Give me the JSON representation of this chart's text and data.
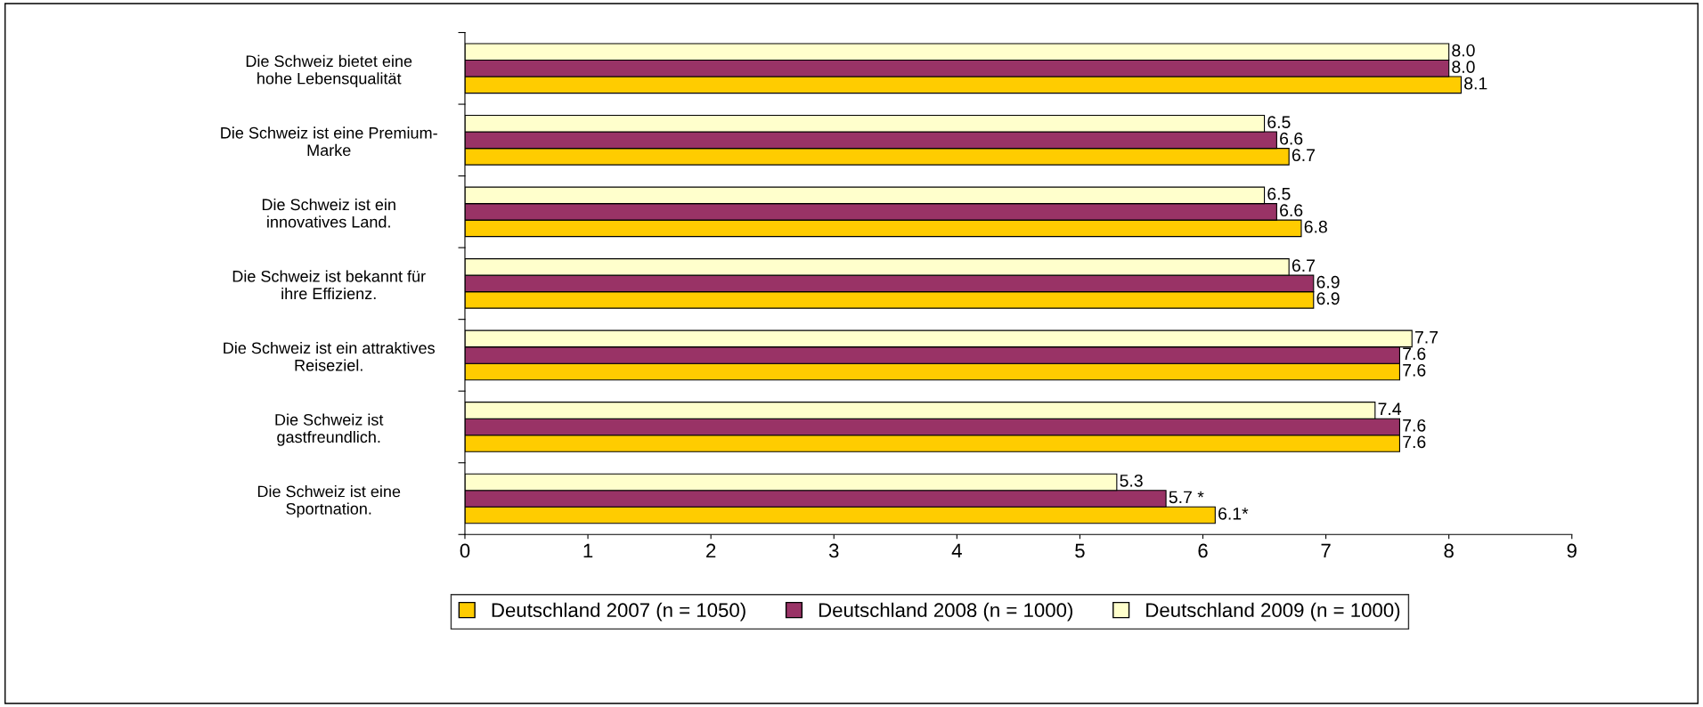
{
  "chart_data": {
    "type": "bar",
    "orientation": "horizontal",
    "categories": [
      "Die Schweiz bietet eine\nhohe Lebensqualität",
      "Die Schweiz ist eine Premium-\nMarke",
      "Die Schweiz ist ein\ninnovatives Land.",
      "Die Schweiz ist bekannt für\nihre Effizienz.",
      "Die Schweiz ist ein attraktives\nReiseziel.",
      "Die Schweiz ist\ngastfreundlich.",
      "Die Schweiz ist eine\nSportnation."
    ],
    "series": [
      {
        "name": "Deutschland 2007 (n = 1050)",
        "color": "#ffcc00",
        "values": [
          8.1,
          6.7,
          6.8,
          6.9,
          7.6,
          7.6,
          6.1
        ],
        "value_labels": [
          "8.1",
          "6.7",
          "6.8",
          "6.9",
          "7.6",
          "7.6",
          "6.1*"
        ]
      },
      {
        "name": "Deutschland 2008 (n = 1000)",
        "color": "#993366",
        "values": [
          8.0,
          6.6,
          6.6,
          6.9,
          7.6,
          7.6,
          5.7
        ],
        "value_labels": [
          "8.0",
          "6.6",
          "6.6",
          "6.9",
          "7.6",
          "7.6",
          "5.7 *"
        ]
      },
      {
        "name": "Deutschland 2009 (n = 1000)",
        "color": "#ffffcc",
        "values": [
          8.0,
          6.5,
          6.5,
          6.7,
          7.7,
          7.4,
          5.3
        ],
        "value_labels": [
          "8.0",
          "6.5",
          "6.5",
          "6.7",
          "7.7",
          "7.4",
          "5.3"
        ]
      }
    ],
    "xlim": [
      0,
      9
    ],
    "xticks": [
      0,
      1,
      2,
      3,
      4,
      5,
      6,
      7,
      8,
      9
    ],
    "grid": false,
    "legend": "bottom"
  }
}
